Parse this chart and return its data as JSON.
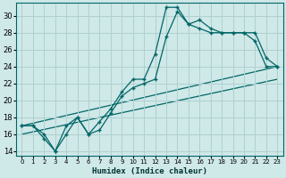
{
  "title": "",
  "xlabel": "Humidex (Indice chaleur)",
  "background_color": "#cfe8e8",
  "grid_color": "#b0d0d0",
  "line_color": "#006666",
  "xlim": [
    -0.5,
    23.5
  ],
  "ylim": [
    13.5,
    31.5
  ],
  "yticks": [
    14,
    16,
    18,
    20,
    22,
    24,
    26,
    28,
    30
  ],
  "xticks": [
    0,
    1,
    2,
    3,
    4,
    5,
    6,
    7,
    8,
    9,
    10,
    11,
    12,
    13,
    14,
    15,
    16,
    17,
    18,
    19,
    20,
    21,
    22,
    23
  ],
  "series_main1": {
    "x": [
      0,
      1,
      2,
      3,
      4,
      5,
      6,
      7,
      8,
      9,
      10,
      11,
      12,
      13,
      14,
      15,
      16,
      17,
      18,
      19,
      20,
      21,
      22,
      23
    ],
    "y": [
      17.0,
      17.0,
      16.0,
      14.0,
      17.0,
      18.0,
      16.0,
      17.5,
      19.0,
      21.0,
      22.5,
      22.5,
      25.5,
      31.0,
      31.0,
      29.0,
      29.5,
      28.5,
      28.0,
      28.0,
      28.0,
      28.0,
      25.0,
      24.0
    ]
  },
  "series_main2": {
    "x": [
      0,
      1,
      2,
      3,
      4,
      5,
      6,
      7,
      8,
      9,
      10,
      11,
      12,
      13,
      14,
      15,
      16,
      17,
      18,
      19,
      20,
      21,
      22,
      23
    ],
    "y": [
      17.0,
      17.0,
      15.5,
      14.0,
      16.0,
      18.0,
      16.0,
      16.5,
      18.5,
      20.5,
      21.5,
      22.0,
      22.5,
      27.5,
      30.5,
      29.0,
      28.5,
      28.0,
      28.0,
      28.0,
      28.0,
      27.0,
      24.0,
      24.0
    ]
  },
  "series_line1": {
    "x": [
      0,
      23
    ],
    "y": [
      17.0,
      24.0
    ]
  },
  "series_line2": {
    "x": [
      0,
      23
    ],
    "y": [
      16.0,
      22.5
    ]
  }
}
